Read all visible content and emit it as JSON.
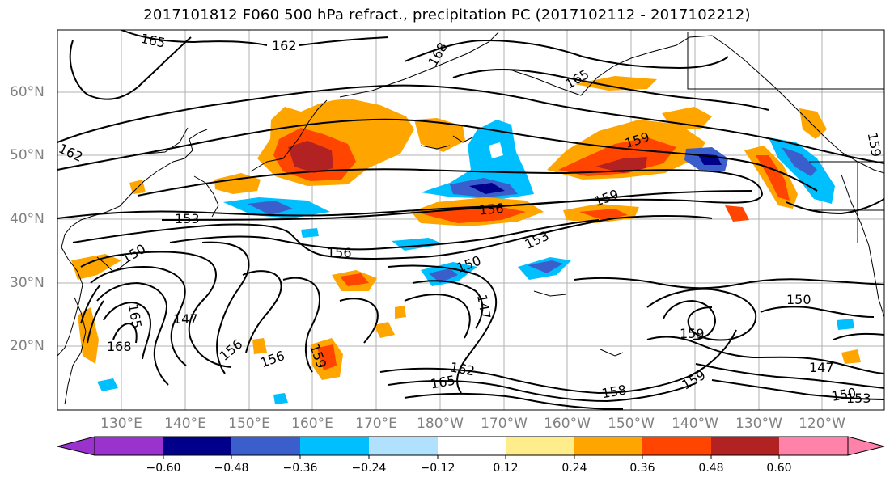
{
  "title": "2017101812 F060 500 hPa refract., precipitation PC (2017102112 - 2017102212)",
  "map": {
    "lat_labels": [
      "60°N",
      "50°N",
      "40°N",
      "30°N",
      "20°N"
    ],
    "lon_labels": [
      "130°E",
      "140°E",
      "150°E",
      "160°E",
      "170°E",
      "180°W",
      "170°W",
      "160°W",
      "150°W",
      "140°W",
      "130°W",
      "120°W"
    ],
    "contour_labels": [
      "165",
      "162",
      "168",
      "165",
      "162",
      "159",
      "153",
      "156",
      "159",
      "156",
      "153",
      "150",
      "150",
      "147",
      "165",
      "168",
      "147",
      "156",
      "159",
      "165",
      "162",
      "158",
      "156",
      "159",
      "150",
      "147",
      "150",
      "153",
      "159",
      "159"
    ],
    "colors": {
      "negative": [
        "#9a32cd",
        "#00008b",
        "#3a5fcd",
        "#00bfff",
        "#b0e2ff"
      ],
      "neutral": "#ffffff",
      "positive": [
        "#ffec8b",
        "#ffa500",
        "#ff4500",
        "#b22222",
        "#ff82ab"
      ]
    }
  },
  "colorbar": {
    "ticks": [
      "−0.60",
      "−0.48",
      "−0.36",
      "−0.24",
      "−0.12",
      "0.12",
      "0.24",
      "0.36",
      "0.48",
      "0.60"
    ],
    "colors": [
      "#9a32cd",
      "#00008b",
      "#3a5fcd",
      "#00bfff",
      "#b0e2ff",
      "#ffffff",
      "#ffec8b",
      "#ffa500",
      "#ff4500",
      "#b22222",
      "#ff82ab"
    ]
  }
}
